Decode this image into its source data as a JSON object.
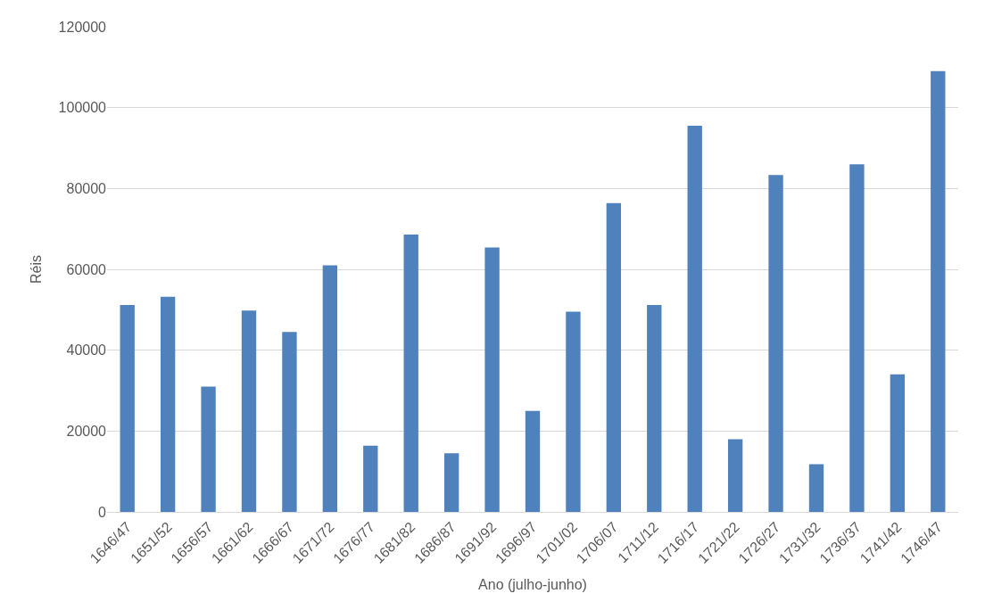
{
  "chart_data": {
    "type": "bar",
    "xlabel": "Ano (julho-junho)",
    "ylabel": "Réis",
    "categories": [
      "1646/47",
      "1651/52",
      "1656/57",
      "1661/62",
      "1666/67",
      "1671/72",
      "1676/77",
      "1681/82",
      "1686/87",
      "1691/92",
      "1696/97",
      "1701/02",
      "1706/07",
      "1711/12",
      "1716/17",
      "1721/22",
      "1726/27",
      "1731/32",
      "1736/37",
      "1741/42",
      "1746/47"
    ],
    "values": [
      51200,
      53200,
      31000,
      49800,
      44500,
      61000,
      16400,
      68600,
      14500,
      65400,
      25000,
      49500,
      76400,
      51200,
      95500,
      18000,
      83300,
      11800,
      86000,
      34000,
      109000
    ],
    "color": "#4f81bd",
    "ylim": [
      0,
      120000
    ],
    "yticks": [
      0,
      20000,
      40000,
      60000,
      80000,
      100000,
      120000
    ],
    "grid": "y"
  }
}
